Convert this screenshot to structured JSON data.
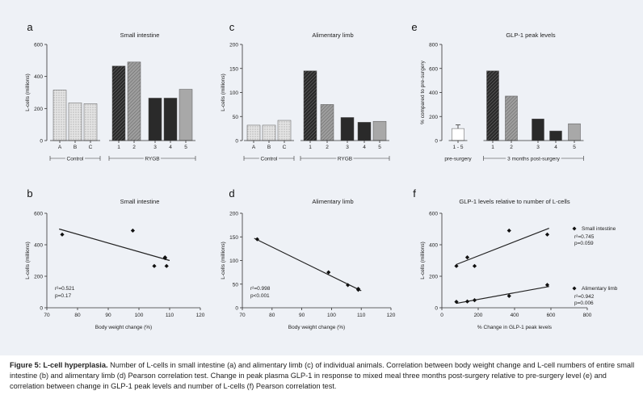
{
  "caption": {
    "label": "Figure 5: L-cell hyperplasia.",
    "text": " Number of L-cells in small intestine (a) and alimentary limb (c) of individual animals. Correlation between body weight change and L-cell numbers of entire small intestine (b) and alimentary limb (d) Pearson correlation test. Change in peak plasma GLP-1 in response to mixed meal three months post-surgery relative to pre-surgery level (e) and correlation between change in GLP-1 peak levels and number of L-cells (f) Pearson correlation test."
  },
  "colors": {
    "background": "#eef1f6",
    "dark_bar": "#2a2a2a",
    "axis": "#333333",
    "caption_text": "#222222"
  },
  "chart_data": [
    {
      "panel": "a",
      "type": "bar",
      "title": "Small intestine",
      "xlabel": "",
      "ylabel": "L-cells (millions)",
      "ylim": [
        0,
        600
      ],
      "yticks": [
        0,
        200,
        400,
        600
      ],
      "categories": [
        "A",
        "B",
        "C",
        "1",
        "2",
        "3",
        "4",
        "5"
      ],
      "values": [
        315,
        235,
        230,
        465,
        490,
        265,
        265,
        320
      ],
      "patterns": [
        "light-hatch",
        "light-hatch",
        "light-hatch",
        "dark-hatch",
        "mid-hatch",
        "solid-dark",
        "solid-dark",
        "solid-mid"
      ],
      "groups": [
        {
          "label": "Control",
          "from": 0,
          "to": 2
        },
        {
          "label": "RYGB",
          "from": 3,
          "to": 7
        }
      ]
    },
    {
      "panel": "c",
      "type": "bar",
      "title": "Alimentary limb",
      "xlabel": "",
      "ylabel": "L-cells (millions)",
      "ylim": [
        0,
        200
      ],
      "yticks": [
        0,
        50,
        100,
        150,
        200
      ],
      "categories": [
        "A",
        "B",
        "C",
        "1",
        "2",
        "3",
        "4",
        "5"
      ],
      "values": [
        32,
        32,
        42,
        145,
        75,
        48,
        38,
        40
      ],
      "patterns": [
        "light-hatch",
        "light-hatch",
        "light-hatch",
        "dark-hatch",
        "mid-hatch",
        "solid-dark",
        "solid-dark",
        "solid-mid"
      ],
      "groups": [
        {
          "label": "Control",
          "from": 0,
          "to": 2
        },
        {
          "label": "RYGB",
          "from": 3,
          "to": 7
        }
      ]
    },
    {
      "panel": "e",
      "type": "bar",
      "title": "GLP-1 peak levels",
      "xlabel": "",
      "ylabel": "% compared to pre-surgery",
      "ylim": [
        0,
        800
      ],
      "yticks": [
        0,
        200,
        400,
        600,
        800
      ],
      "categories": [
        "1 - 5",
        "1",
        "2",
        "3",
        "4",
        "5"
      ],
      "values": [
        100,
        580,
        370,
        180,
        80,
        140
      ],
      "error": [
        null,
        null,
        null,
        null,
        null,
        null
      ],
      "error_first": 30,
      "patterns": [
        "white",
        "dark-hatch",
        "mid-hatch",
        "solid-dark",
        "solid-dark",
        "solid-mid"
      ],
      "groups": [
        {
          "label": "pre-surgery",
          "from": 0,
          "to": 0
        },
        {
          "label": "3 months post-surgery",
          "from": 1,
          "to": 5
        }
      ]
    },
    {
      "panel": "b",
      "type": "scatter",
      "title": "Small intestine",
      "xlabel": "Body weight change (%)",
      "ylabel": "L-cells (millions)",
      "xlim": [
        70,
        120
      ],
      "xticks": [
        70,
        80,
        90,
        100,
        110,
        120
      ],
      "ylim": [
        0,
        600
      ],
      "yticks": [
        0,
        200,
        400,
        600
      ],
      "x": [
        75,
        98,
        105,
        108.5,
        108.5,
        109
      ],
      "y": [
        465,
        490,
        265,
        320,
        315,
        265
      ],
      "fit": {
        "x": [
          74,
          110
        ],
        "y": [
          500,
          300
        ]
      },
      "stats": [
        "r²=0.521",
        "p=0.17"
      ]
    },
    {
      "panel": "d",
      "type": "scatter",
      "title": "Alimentary limb",
      "xlabel": "Body weight change (%)",
      "ylabel": "L-cells (millions)",
      "xlim": [
        70,
        120
      ],
      "xticks": [
        70,
        80,
        90,
        100,
        110,
        120
      ],
      "ylim": [
        0,
        200
      ],
      "yticks": [
        0,
        50,
        100,
        150,
        200
      ],
      "x": [
        75,
        99,
        105.5,
        109,
        109
      ],
      "y": [
        145,
        75,
        48,
        38,
        40
      ],
      "fit": {
        "x": [
          74,
          110
        ],
        "y": [
          147,
          36
        ]
      },
      "stats": [
        "r²=0.998",
        "p<0.001"
      ]
    },
    {
      "panel": "f",
      "type": "scatter",
      "title": "GLP-1 levels relative to number of L-cells",
      "xlabel": "% Change in GLP-1 peak levels",
      "ylabel": "L-cells (millions)",
      "xlim": [
        0,
        800
      ],
      "xticks": [
        0,
        200,
        400,
        600,
        800
      ],
      "ylim": [
        0,
        600
      ],
      "yticks": [
        0,
        200,
        400,
        600
      ],
      "series": [
        {
          "name": "Small intestine",
          "x": [
            80,
            140,
            180,
            370,
            580
          ],
          "y": [
            265,
            320,
            265,
            490,
            465
          ],
          "fit": {
            "x": [
              80,
              590
            ],
            "y": [
              275,
              505
            ]
          },
          "stats": [
            "r²=0.745",
            "p=0.059"
          ]
        },
        {
          "name": "Alimentary limb",
          "x": [
            80,
            140,
            180,
            370,
            580
          ],
          "y": [
            38,
            40,
            48,
            75,
            145
          ],
          "fit": {
            "x": [
              80,
              590
            ],
            "y": [
              28,
              135
            ]
          },
          "stats": [
            "r²=0.942",
            "p=0.006"
          ]
        }
      ]
    }
  ]
}
